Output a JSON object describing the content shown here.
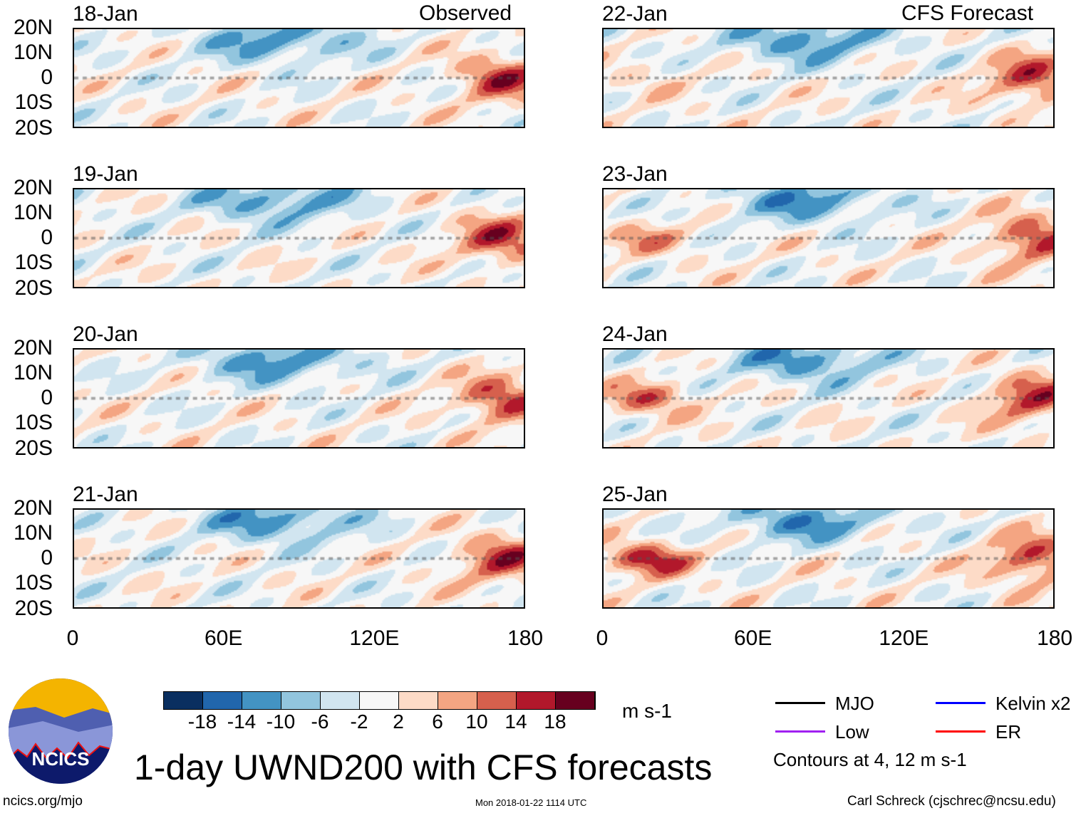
{
  "figure": {
    "title": "1-day UWND200 with CFS forecasts",
    "left_column_label": "Observed",
    "right_column_label": "CFS Forecast",
    "units": "m s-1",
    "contour_note": "Contours at 4, 12 m s-1",
    "source_url": "ncics.org/mjo",
    "timestamp": "Mon 2018-01-22 1114 UTC",
    "author": "Carl Schreck (cjschrec@ncsu.edu)",
    "logo_text": "NCICS"
  },
  "panels": [
    {
      "date": "18-Jan",
      "seed": 1
    },
    {
      "date": "19-Jan",
      "seed": 2
    },
    {
      "date": "20-Jan",
      "seed": 3
    },
    {
      "date": "21-Jan",
      "seed": 4
    },
    {
      "date": "22-Jan",
      "seed": 5
    },
    {
      "date": "23-Jan",
      "seed": 6
    },
    {
      "date": "24-Jan",
      "seed": 7
    },
    {
      "date": "25-Jan",
      "seed": 8
    }
  ],
  "lat_labels": [
    "20N",
    "10N",
    "0",
    "10S",
    "20S"
  ],
  "lon_labels": [
    "0",
    "60E",
    "120E",
    "180"
  ],
  "colorbar": {
    "colors": [
      "#0a2f60",
      "#2166ac",
      "#4393c3",
      "#92c5de",
      "#d1e5f0",
      "#f7f7f7",
      "#fddbc7",
      "#f4a582",
      "#d6604d",
      "#b2182b",
      "#67001f"
    ],
    "labels": [
      "-18",
      "-14",
      "-10",
      "-6",
      "-2",
      "2",
      "6",
      "10",
      "14",
      "18"
    ]
  },
  "legend": [
    {
      "label": "MJO",
      "color": "#000000"
    },
    {
      "label": "Kelvin x2",
      "color": "#0000ff"
    },
    {
      "label": "Low",
      "color": "#a020f0"
    },
    {
      "label": "ER",
      "color": "#ff0000"
    }
  ]
}
